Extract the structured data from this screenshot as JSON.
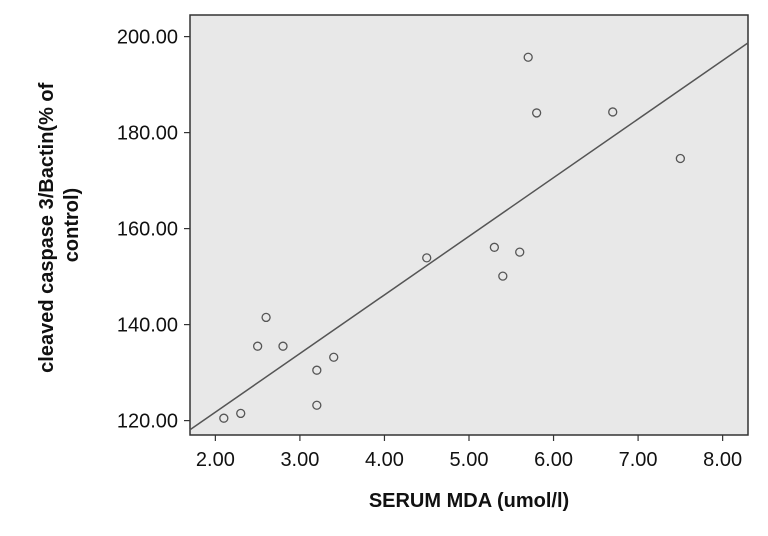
{
  "chart_data": {
    "type": "scatter",
    "title": "",
    "xlabel": "SERUM MDA (umol/l)",
    "ylabel_lines": [
      "cleaved caspase 3/Bactin(% of",
      "control)"
    ],
    "xlim": [
      1.7,
      8.3
    ],
    "ylim": [
      117.0,
      204.5
    ],
    "x_ticks": [
      "2.00",
      "3.00",
      "4.00",
      "5.00",
      "6.00",
      "7.00",
      "8.00"
    ],
    "y_ticks": [
      "120.00",
      "140.00",
      "160.00",
      "180.00",
      "200.00"
    ],
    "grid": false,
    "legend": "none",
    "colors": {
      "plot_background": "#e8e8e8",
      "point_stroke": "#555555",
      "fit_line": "#555555",
      "axis": "#333333"
    },
    "points": [
      {
        "x": 2.1,
        "y": 120.5
      },
      {
        "x": 2.3,
        "y": 121.5
      },
      {
        "x": 2.5,
        "y": 135.5
      },
      {
        "x": 2.6,
        "y": 141.5
      },
      {
        "x": 2.8,
        "y": 135.5
      },
      {
        "x": 3.2,
        "y": 130.5
      },
      {
        "x": 3.2,
        "y": 123.2
      },
      {
        "x": 3.4,
        "y": 133.2
      },
      {
        "x": 4.5,
        "y": 153.9
      },
      {
        "x": 5.3,
        "y": 156.1
      },
      {
        "x": 5.4,
        "y": 150.1
      },
      {
        "x": 5.6,
        "y": 155.1
      },
      {
        "x": 5.7,
        "y": 195.7
      },
      {
        "x": 5.8,
        "y": 184.1
      },
      {
        "x": 6.7,
        "y": 184.3
      },
      {
        "x": 7.5,
        "y": 174.6
      }
    ],
    "fit_line": {
      "x": [
        1.7,
        8.3
      ],
      "y": [
        118.1,
        198.7
      ]
    }
  }
}
